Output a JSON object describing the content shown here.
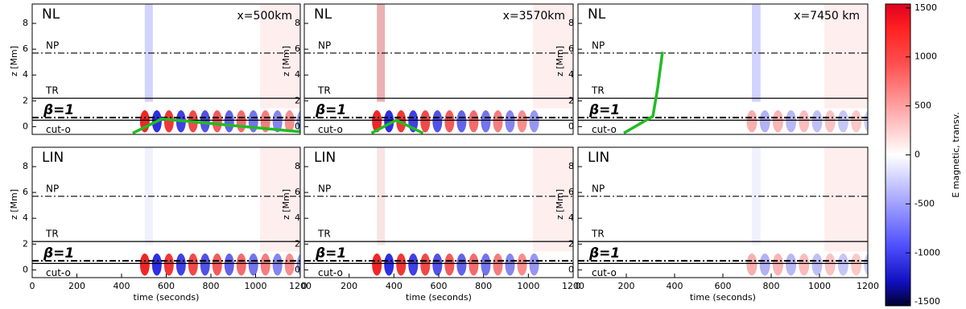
{
  "chart_data": [
    {
      "type": "heatmap",
      "title": "NL",
      "annotation": "x=500km",
      "xlim": [
        0,
        1200
      ],
      "ylim": [
        -0.6,
        9.5
      ],
      "yticks": [
        0,
        2,
        4,
        6,
        8
      ],
      "ylabel": "z [Mm]",
      "levels": [
        {
          "label": "NP",
          "value": 5.7,
          "style": "dashdot"
        },
        {
          "label": "TR",
          "value": 2.2,
          "style": "solid"
        },
        {
          "label": "β=1",
          "value": 0.7,
          "style": "dashdot"
        },
        {
          "label": "cut-o",
          "value": 0.5,
          "style": "solid"
        }
      ],
      "green_curve": {
        "color": "#22bb22",
        "x": [
          450,
          580,
          1200
        ],
        "y": [
          -0.5,
          0.6,
          -0.4
        ]
      }
    },
    {
      "type": "heatmap",
      "title": "NL",
      "annotation": "x=3570km",
      "xlim": [
        0,
        1200
      ],
      "ylim": [
        -0.6,
        9.5
      ],
      "yticks": [
        0,
        2,
        4,
        6,
        8
      ],
      "ylabel": "z [Mm]",
      "levels": [
        {
          "label": "NP",
          "value": 5.7,
          "style": "dashdot"
        },
        {
          "label": "TR",
          "value": 2.2,
          "style": "solid"
        },
        {
          "label": "β=1",
          "value": 0.7,
          "style": "dashdot"
        },
        {
          "label": "cut-o",
          "value": 0.5,
          "style": "solid"
        }
      ],
      "green_curve": {
        "color": "#22bb22",
        "x": [
          300,
          410,
          530
        ],
        "y": [
          -0.5,
          0.5,
          -0.5
        ]
      }
    },
    {
      "type": "heatmap",
      "title": "NL",
      "annotation": "x=7450 km",
      "xlim": [
        0,
        1200
      ],
      "ylim": [
        -0.6,
        9.5
      ],
      "yticks": [
        0,
        2,
        4,
        6,
        8
      ],
      "ylabel": "z [Mm]",
      "levels": [
        {
          "label": "NP",
          "value": 5.7,
          "style": "dashdot"
        },
        {
          "label": "TR",
          "value": 2.2,
          "style": "solid"
        },
        {
          "label": "β=1",
          "value": 0.7,
          "style": "dashdot"
        },
        {
          "label": "cut-o",
          "value": 0.5,
          "style": "solid"
        }
      ],
      "green_curve": {
        "color": "#22bb22",
        "x": [
          190,
          310,
          330,
          350
        ],
        "y": [
          -0.5,
          0.8,
          3,
          5.8
        ]
      }
    },
    {
      "type": "heatmap",
      "title": "LIN",
      "xlim": [
        0,
        1200
      ],
      "ylim": [
        -0.6,
        9.5
      ],
      "xticks": [
        0,
        200,
        400,
        600,
        800,
        1000,
        1200
      ],
      "yticks": [
        0,
        2,
        4,
        6,
        8
      ],
      "ylabel": "z [Mm]",
      "xlabel": "time (seconds)",
      "levels": [
        {
          "label": "NP",
          "value": 5.7,
          "style": "dashdot"
        },
        {
          "label": "TR",
          "value": 2.2,
          "style": "solid"
        },
        {
          "label": "β=1",
          "value": 0.7,
          "style": "dashdot"
        },
        {
          "label": "cut-o",
          "value": 0.5,
          "style": "solid"
        }
      ]
    },
    {
      "type": "heatmap",
      "title": "LIN",
      "xlim": [
        0,
        1200
      ],
      "ylim": [
        -0.6,
        9.5
      ],
      "xticks": [
        0,
        200,
        400,
        600,
        800,
        1000,
        1200
      ],
      "yticks": [
        0,
        2,
        4,
        6,
        8
      ],
      "ylabel": "z [Mm]",
      "xlabel": "time (seconds)",
      "levels": [
        {
          "label": "NP",
          "value": 5.7,
          "style": "dashdot"
        },
        {
          "label": "TR",
          "value": 2.2,
          "style": "solid"
        },
        {
          "label": "β=1",
          "value": 0.7,
          "style": "dashdot"
        },
        {
          "label": "cut-o",
          "value": 0.5,
          "style": "solid"
        }
      ]
    },
    {
      "type": "heatmap",
      "title": "LIN",
      "xlim": [
        0,
        1200
      ],
      "ylim": [
        -0.6,
        9.5
      ],
      "xticks": [
        0,
        200,
        400,
        600,
        800,
        1000,
        1200
      ],
      "yticks": [
        0,
        2,
        4,
        6,
        8
      ],
      "ylabel": "z [Mm]",
      "xlabel": "time (seconds)",
      "levels": [
        {
          "label": "NP",
          "value": 5.7,
          "style": "dashdot"
        },
        {
          "label": "TR",
          "value": 2.2,
          "style": "solid"
        },
        {
          "label": "β=1",
          "value": 0.7,
          "style": "dashdot"
        },
        {
          "label": "cut-o",
          "value": 0.5,
          "style": "solid"
        }
      ]
    },
    {
      "type": "colorbar",
      "label": "E magnetic, transv.",
      "lim": [
        -1540,
        1540
      ],
      "ticks": [
        -1500,
        -1000,
        -500,
        0,
        500,
        1000,
        1500
      ]
    }
  ]
}
